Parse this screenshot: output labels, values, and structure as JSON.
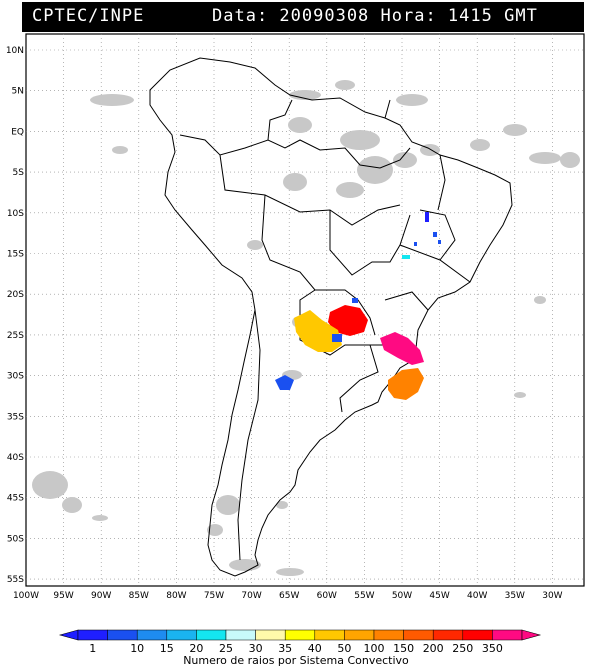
{
  "header": {
    "source": "CPTEC/INPE",
    "datetime": "Data: 20090308 Hora: 1415 GMT"
  },
  "map": {
    "lat_labels": [
      "10N",
      "5N",
      "EQ",
      "5S",
      "10S",
      "15S",
      "20S",
      "25S",
      "30S",
      "35S",
      "40S",
      "45S",
      "50S",
      "55S"
    ],
    "lon_labels": [
      "100W",
      "95W",
      "90W",
      "85W",
      "80W",
      "75W",
      "70W",
      "65W",
      "60W",
      "55W",
      "50W",
      "45W",
      "40W",
      "35W",
      "30W"
    ],
    "grid": true,
    "cloud_color": "#c8c8c8",
    "lightning_systems_count": 12
  },
  "colorbar": {
    "labels": [
      "1",
      "10",
      "15",
      "20",
      "25",
      "30",
      "35",
      "40",
      "50",
      "100",
      "150",
      "200",
      "250",
      "350"
    ],
    "colors": [
      "#1f1fff",
      "#1a50f0",
      "#1e8cf0",
      "#1ab4f0",
      "#14e6f0",
      "#c8fafa",
      "#fffaaa",
      "#ffff00",
      "#ffc800",
      "#ffa500",
      "#ff8200",
      "#ff5a00",
      "#ff2800",
      "#ff0000",
      "#ff0a82"
    ],
    "title": "Numero de raios por Sistema Convectivo"
  }
}
